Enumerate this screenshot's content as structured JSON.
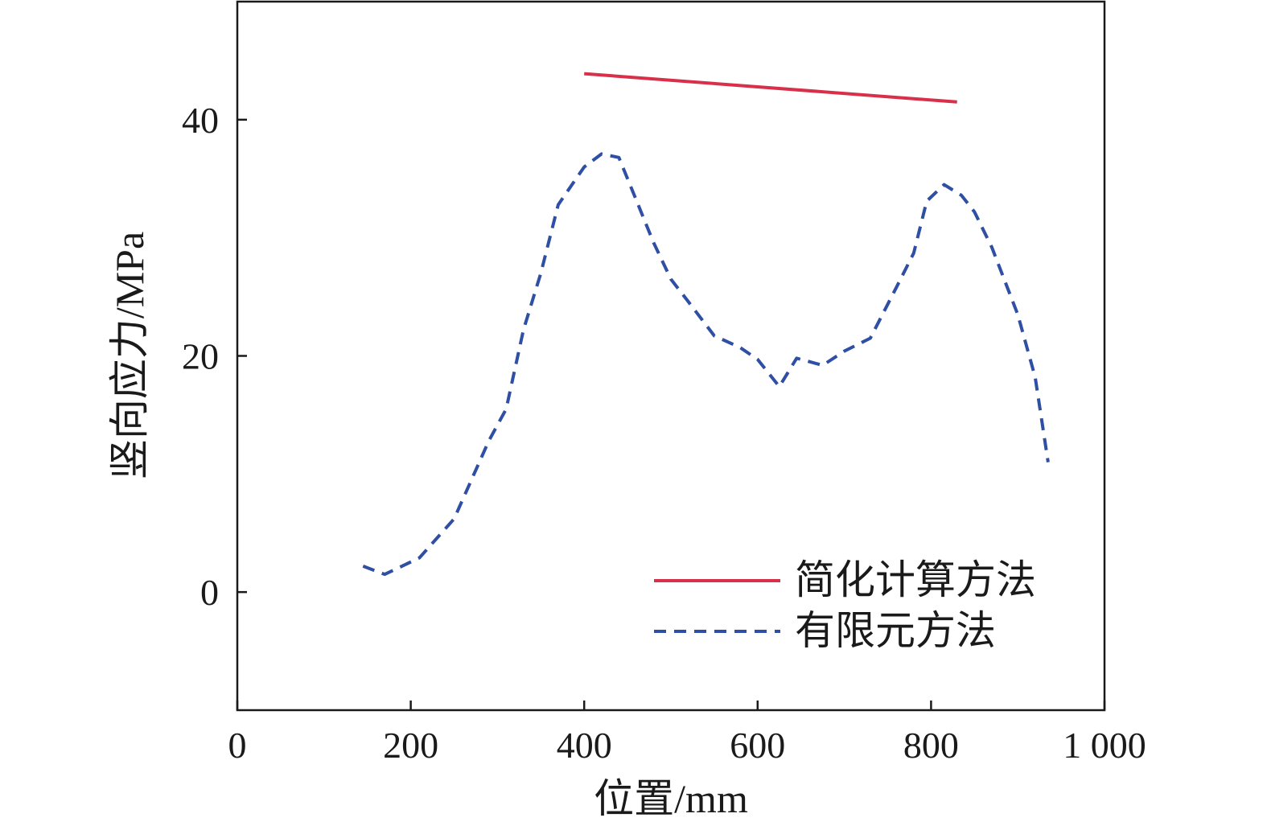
{
  "chart_data": {
    "type": "line",
    "xlabel": "位置/mm",
    "ylabel": "竖向应力/MPa",
    "xlim": [
      0,
      1000
    ],
    "ylim": [
      -10,
      50
    ],
    "x_ticks": [
      {
        "value": 0,
        "label": "0"
      },
      {
        "value": 200,
        "label": "200"
      },
      {
        "value": 400,
        "label": "400"
      },
      {
        "value": 600,
        "label": "600"
      },
      {
        "value": 800,
        "label": "800"
      },
      {
        "value": 1000,
        "label": "1 000"
      }
    ],
    "y_ticks": [
      {
        "value": 0,
        "label": "0"
      },
      {
        "value": 20,
        "label": "20"
      },
      {
        "value": 40,
        "label": "40"
      }
    ],
    "grid": false,
    "legend_position": "bottom-right",
    "series": [
      {
        "name": "简化计算方法",
        "style": "solid",
        "color": "#d9304a",
        "points": [
          [
            400,
            43.9
          ],
          [
            830,
            41.5
          ]
        ]
      },
      {
        "name": "有限元方法",
        "style": "dashed",
        "color": "#2e4fa3",
        "points": [
          [
            145,
            2.2
          ],
          [
            170,
            1.5
          ],
          [
            210,
            2.9
          ],
          [
            250,
            6.2
          ],
          [
            290,
            12.8
          ],
          [
            310,
            15.5
          ],
          [
            330,
            22.2
          ],
          [
            350,
            27.0
          ],
          [
            370,
            32.8
          ],
          [
            400,
            36.0
          ],
          [
            420,
            37.1
          ],
          [
            440,
            36.8
          ],
          [
            460,
            33.2
          ],
          [
            480,
            29.6
          ],
          [
            500,
            26.5
          ],
          [
            520,
            24.6
          ],
          [
            550,
            21.7
          ],
          [
            580,
            20.7
          ],
          [
            600,
            19.7
          ],
          [
            625,
            17.4
          ],
          [
            645,
            19.8
          ],
          [
            675,
            19.2
          ],
          [
            700,
            20.4
          ],
          [
            730,
            21.5
          ],
          [
            760,
            25.8
          ],
          [
            780,
            28.7
          ],
          [
            795,
            33.1
          ],
          [
            815,
            34.5
          ],
          [
            835,
            33.6
          ],
          [
            850,
            32.2
          ],
          [
            870,
            29.2
          ],
          [
            900,
            23.5
          ],
          [
            920,
            18.2
          ],
          [
            935,
            11.0
          ]
        ]
      }
    ]
  }
}
